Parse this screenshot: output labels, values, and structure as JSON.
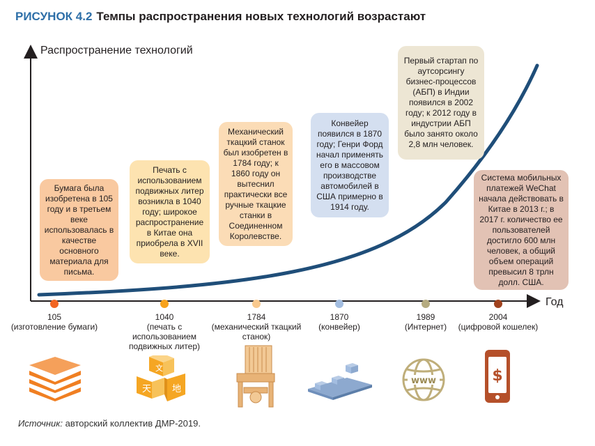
{
  "title": {
    "label": "РИСУНОК 4.2",
    "text": "Темпы распространения новых технологий возрастают"
  },
  "axes": {
    "ylabel": "Распространение технологий",
    "xlabel": "Год"
  },
  "colors": {
    "curve": "#1f4e79",
    "axis": "#231f20",
    "title_label": "#2e6fa8",
    "icon_orange": "#f07f22",
    "icon_gold": "#f5a623",
    "icon_tan": "#e8b377",
    "icon_blue": "#8da9cf",
    "icon_olive": "#bfae7a",
    "icon_brown": "#b5502a"
  },
  "boxes": [
    {
      "text": "Бумага была изобретена в 105 году и в третьем веке использовалась в качестве основного материала для письма.",
      "color": "#f9c9a0"
    },
    {
      "text": "Печать с использованием подвижных литер возникла в 1040 году; широкое распространение в Китае она приобрела в XVII веке.",
      "color": "#fde3b0"
    },
    {
      "text": "Механический ткацкий станок был изобретен в 1784 году; к 1860 году он вытеснил практически все ручные ткацкие станки в Соединенном Королевстве.",
      "color": "#fbdcb6"
    },
    {
      "text": "Конвейер появился в 1870 году; Генри Форд начал применять его в массовом производстве автомобилей в США примерно в 1914 году.",
      "color": "#d4dff0"
    },
    {
      "text": "Первый стартап по аутсорсингу бизнес-процессов (АБП) в Индии появился в 2002 году; к 2012 году в индустрии АБП было занято около 2,8 млн человек.",
      "color": "#ede6d4"
    },
    {
      "text": "Система мобильных платежей WeChat начала действовать в Китае в 2013 г.; в 2017 г. количество ее пользователей достигло 600 млн человек, а общий объем операций превысил 8 трлн долл. США.",
      "color": "#e2c2b4"
    }
  ],
  "timeline": [
    {
      "year": "105",
      "label": "(изготовление бумаги)",
      "color": "#f26522"
    },
    {
      "year": "1040",
      "label": "(печать с использованием подвижных литер)",
      "color": "#f7a21b"
    },
    {
      "year": "1784",
      "label": "(механический ткацкий станок)",
      "color": "#f9c98e"
    },
    {
      "year": "1870",
      "label": "(конвейер)",
      "color": "#a3bde0"
    },
    {
      "year": "1989",
      "label": "(Интернет)",
      "color": "#b5ab80"
    },
    {
      "year": "2004",
      "label": "(цифровой кошелек)",
      "color": "#a0421e"
    }
  ],
  "icons": [
    "paper-stack-icon",
    "movable-type-blocks-icon",
    "loom-icon",
    "conveyor-icon",
    "www-globe-icon",
    "phone-wallet-icon"
  ],
  "source": {
    "label": "Источник:",
    "text": " авторский коллектив ДМР-2019."
  }
}
